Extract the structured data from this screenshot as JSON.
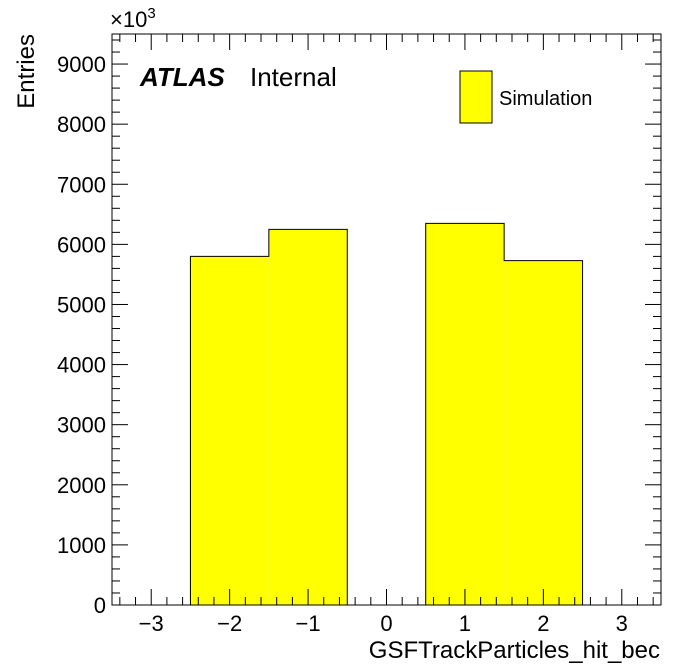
{
  "chart_data": {
    "type": "bar",
    "title": "",
    "xlabel": "GSFTrackParticles_hit_bec",
    "ylabel": "Entries",
    "y_multiplier": "×10",
    "y_multiplier_exp": "3",
    "xlim": [
      -3.5,
      3.5
    ],
    "ylim": [
      0,
      9500
    ],
    "xticks": [
      -3,
      -2,
      -1,
      0,
      1,
      2,
      3
    ],
    "xtick_labels": [
      "−3",
      "−2",
      "−1",
      "0",
      "1",
      "2",
      "3"
    ],
    "yticks": [
      0,
      1000,
      2000,
      3000,
      4000,
      5000,
      6000,
      7000,
      8000,
      9000
    ],
    "ytick_labels": [
      "0",
      "1000",
      "2000",
      "3000",
      "4000",
      "5000",
      "6000",
      "7000",
      "8000",
      "9000"
    ],
    "bins": [
      {
        "low": -2.5,
        "high": -1.5,
        "value": 5800
      },
      {
        "low": -1.5,
        "high": -0.5,
        "value": 6250
      },
      {
        "low": 0.5,
        "high": 1.5,
        "value": 6350
      },
      {
        "low": 1.5,
        "high": 2.5,
        "value": 5730
      }
    ],
    "series": [
      {
        "name": "Simulation",
        "color": "#ffff00"
      }
    ],
    "fill_color": "#ffff00",
    "legend_position": "top-right"
  },
  "labels": {
    "atlas": "ATLAS",
    "internal": "Internal"
  }
}
